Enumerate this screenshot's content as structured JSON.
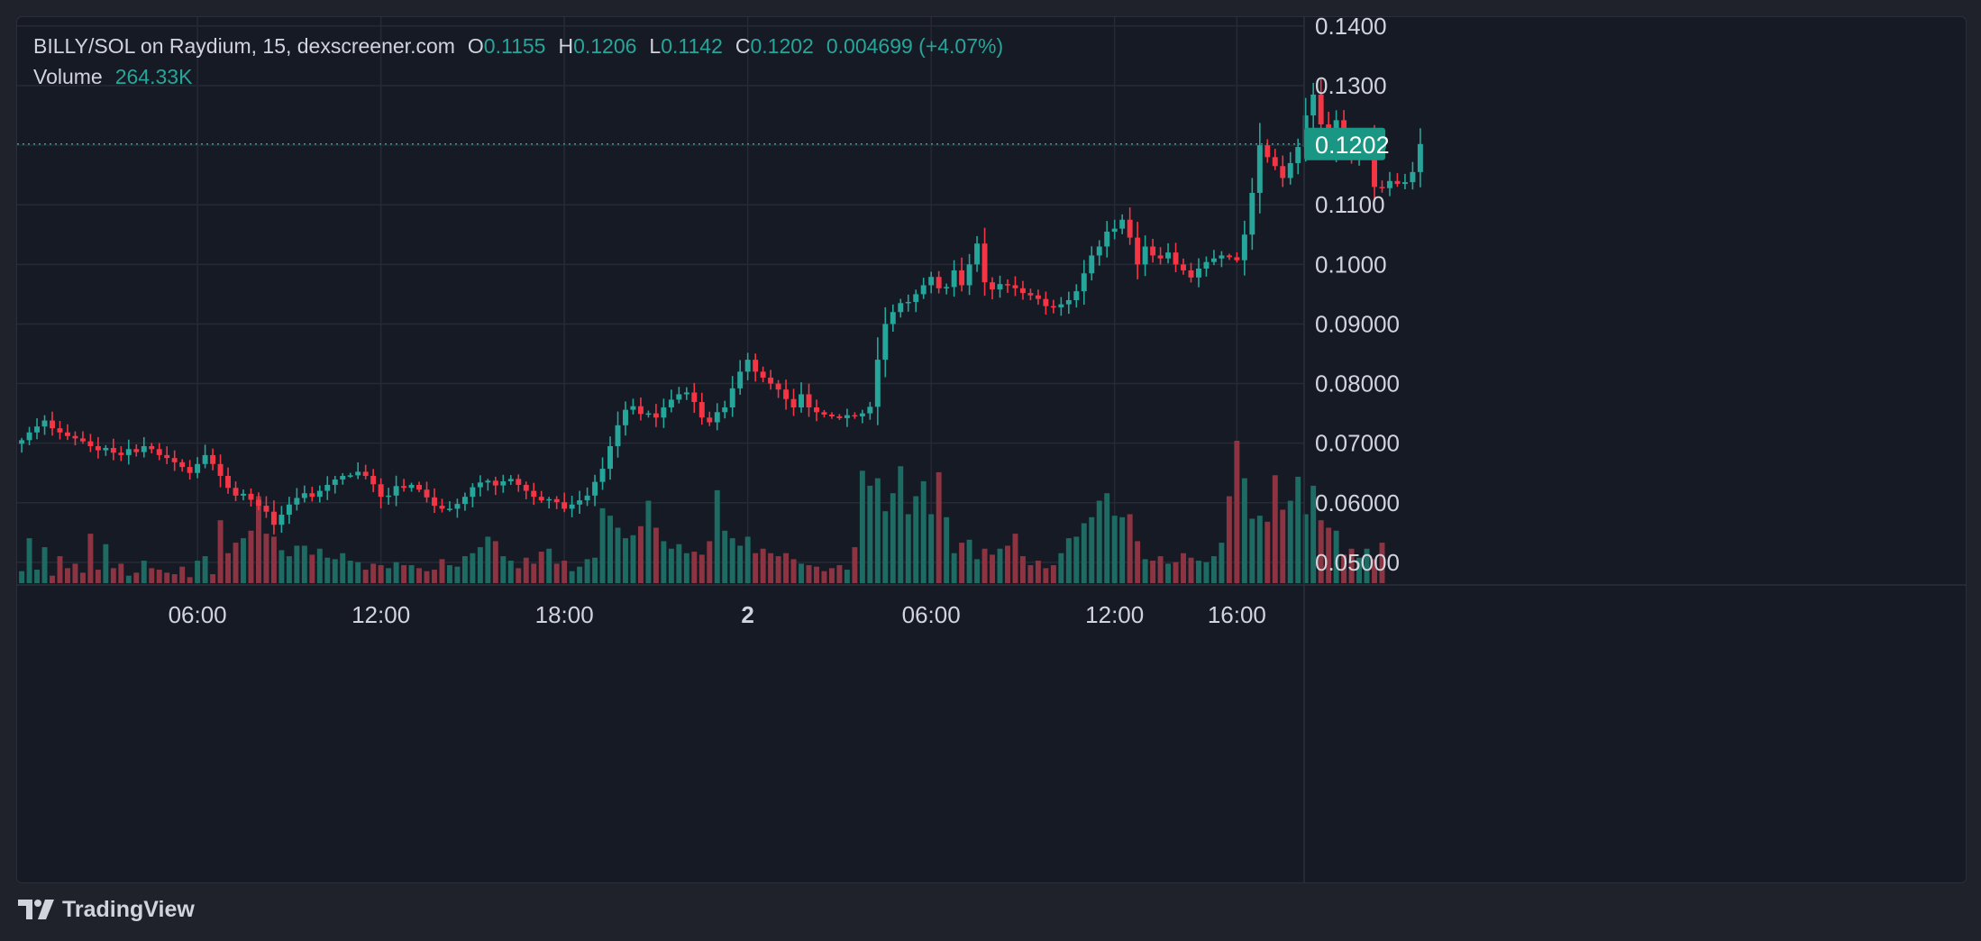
{
  "legend": {
    "symbol": "BILLY/SOL on Raydium, 15, dexscreener.com",
    "open_label": "O",
    "open": "0.1155",
    "high_label": "H",
    "high": "0.1206",
    "low_label": "L",
    "low": "0.1142",
    "close_label": "C",
    "close": "0.1202",
    "change": "0.004699 (+4.07%)",
    "volume_label": "Volume",
    "volume": "264.33K"
  },
  "branding": {
    "logo_text": "TradingView"
  },
  "colors": {
    "up": "#26a69a",
    "down": "#f23645",
    "up_volume": "#1d6b62",
    "down_volume": "#8c3441",
    "price_badge": "#1a9784",
    "background": "#161a25",
    "grid": "#262a35"
  },
  "chart_data": {
    "type": "candlestick",
    "title": "BILLY/SOL on Raydium, 15, dexscreener.com",
    "current_price": 0.1202,
    "current_price_label": "0.1202",
    "y_ticks": [
      "0.1400",
      "0.1300",
      "0.1200",
      "0.1100",
      "0.1000",
      "0.09000",
      "0.08000",
      "0.07000",
      "0.06000",
      "0.05000"
    ],
    "y_tick_values": [
      0.14,
      0.13,
      0.12,
      0.11,
      0.1,
      0.09,
      0.08,
      0.07,
      0.06,
      0.05
    ],
    "x_ticks": [
      "06:00",
      "12:00",
      "18:00",
      "2",
      "06:00",
      "12:00",
      "16:00"
    ],
    "x_tick_values": [
      6,
      12,
      18,
      24,
      30,
      36,
      40
    ],
    "x_range": [
      0.1,
      42.2
    ],
    "y_range": [
      0.0462,
      0.1415
    ],
    "grid": true,
    "candles_hour_start": 0.25,
    "candles_interval_hours": 0.25,
    "close_path": [
      0.0705,
      0.0718,
      0.0728,
      0.0738,
      0.0725,
      0.0718,
      0.0712,
      0.0708,
      0.0703,
      0.0695,
      0.0688,
      0.0692,
      0.0684,
      0.068,
      0.069,
      0.0685,
      0.0695,
      0.069,
      0.068,
      0.0675,
      0.0668,
      0.066,
      0.065,
      0.0665,
      0.068,
      0.0665,
      0.0645,
      0.0625,
      0.0612,
      0.0615,
      0.0605,
      0.0595,
      0.0585,
      0.0563,
      0.058,
      0.0597,
      0.0608,
      0.0616,
      0.061,
      0.062,
      0.063,
      0.0639,
      0.0645,
      0.0646,
      0.0652,
      0.0645,
      0.0631,
      0.061,
      0.0612,
      0.0628,
      0.0625,
      0.063,
      0.0622,
      0.0609,
      0.0595,
      0.059,
      0.059,
      0.0598,
      0.061,
      0.0626,
      0.0634,
      0.0637,
      0.0629,
      0.0636,
      0.064,
      0.063,
      0.062,
      0.061,
      0.0604,
      0.0606,
      0.0601,
      0.059,
      0.0597,
      0.0604,
      0.0612,
      0.0635,
      0.0657,
      0.0695,
      0.073,
      0.0756,
      0.0762,
      0.0749,
      0.075,
      0.0743,
      0.076,
      0.0773,
      0.0782,
      0.0785,
      0.0769,
      0.0743,
      0.0735,
      0.0752,
      0.076,
      0.0792,
      0.082,
      0.084,
      0.082,
      0.081,
      0.08,
      0.079,
      0.0774,
      0.076,
      0.0782,
      0.076,
      0.0752,
      0.0748,
      0.0745,
      0.0742,
      0.0747,
      0.0745,
      0.075,
      0.0761,
      0.084,
      0.09,
      0.092,
      0.0935,
      0.0937,
      0.095,
      0.0965,
      0.0979,
      0.096,
      0.0962,
      0.099,
      0.0965,
      0.1,
      0.1035,
      0.097,
      0.0958,
      0.0967,
      0.0965,
      0.096,
      0.0952,
      0.0948,
      0.0942,
      0.093,
      0.0928,
      0.0933,
      0.094,
      0.0955,
      0.0985,
      0.1015,
      0.103,
      0.1055,
      0.106,
      0.1075,
      0.1045,
      0.1,
      0.103,
      0.1015,
      0.101,
      0.102,
      0.1,
      0.099,
      0.0978,
      0.0993,
      0.1004,
      0.101,
      0.1015,
      0.1012,
      0.1007,
      0.105,
      0.112,
      0.12,
      0.118,
      0.1165,
      0.1145,
      0.117,
      0.1197,
      0.125,
      0.1285,
      0.1235,
      0.1195,
      0.1242,
      0.1201,
      0.118,
      0.1196,
      0.12,
      0.113,
      0.1128,
      0.114,
      0.1135,
      0.1138,
      0.1155,
      0.1202
    ],
    "volume_path": [
      8,
      30,
      9,
      24,
      5,
      18,
      10,
      13,
      7,
      33,
      9,
      26,
      10,
      13,
      5,
      7,
      15,
      10,
      9,
      7,
      6,
      11,
      4,
      15,
      18,
      6,
      42,
      20,
      27,
      30,
      35,
      58,
      33,
      31,
      22,
      18,
      25,
      25,
      19,
      23,
      17,
      16,
      20,
      15,
      14,
      9,
      13,
      12,
      10,
      14,
      12,
      12,
      10,
      8,
      9,
      16,
      12,
      11,
      18,
      20,
      24,
      31,
      28,
      18,
      15,
      10,
      17,
      13,
      21,
      23,
      13,
      15,
      8,
      11,
      16,
      17,
      50,
      45,
      37,
      30,
      32,
      38,
      55,
      37,
      28,
      23,
      26,
      20,
      21,
      19,
      28,
      62,
      35,
      30,
      25,
      31,
      20,
      23,
      20,
      18,
      20,
      16,
      13,
      12,
      11,
      8,
      10,
      12,
      9,
      24,
      75,
      65,
      70,
      48,
      60,
      78,
      46,
      58,
      68,
      46,
      74,
      44,
      20,
      27,
      29,
      16,
      23,
      19,
      23,
      25,
      33,
      18,
      12,
      15,
      10,
      12,
      20,
      30,
      31,
      40,
      44,
      55,
      60,
      45,
      44,
      46,
      28,
      16,
      15,
      18,
      13,
      14,
      20,
      17,
      15,
      14,
      18,
      27,
      58,
      95,
      70,
      43,
      45,
      41,
      72,
      49,
      55,
      71,
      46,
      65,
      42,
      37,
      35,
      19,
      23,
      17,
      23,
      16,
      27
    ]
  }
}
